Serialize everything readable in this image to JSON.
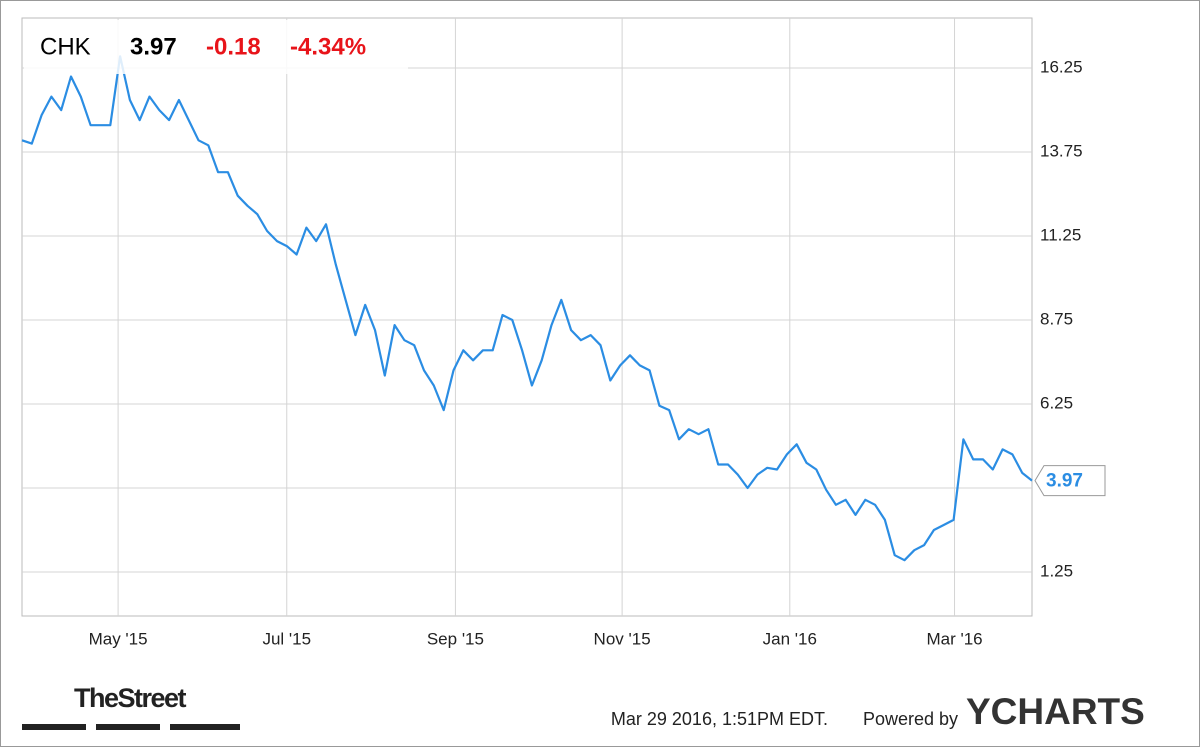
{
  "quote": {
    "symbol": "CHK",
    "price": "3.97",
    "change": "-0.18",
    "change_pct": "-4.34%"
  },
  "chart_data": {
    "type": "line",
    "series": [
      {
        "name": "CHK",
        "color": "#2b8de3",
        "values": [
          14.1,
          14.0,
          14.85,
          15.4,
          15.0,
          16.0,
          15.4,
          14.55,
          14.55,
          14.55,
          16.6,
          15.3,
          14.7,
          15.4,
          15.0,
          14.7,
          15.3,
          14.7,
          14.1,
          13.95,
          13.15,
          13.15,
          12.45,
          12.15,
          11.9,
          11.4,
          11.1,
          10.95,
          10.7,
          11.5,
          11.1,
          11.6,
          10.4,
          9.35,
          8.3,
          9.2,
          8.45,
          7.1,
          8.6,
          8.15,
          8.0,
          7.25,
          6.8,
          6.07,
          7.25,
          7.85,
          7.55,
          7.85,
          7.85,
          8.9,
          8.75,
          7.85,
          6.8,
          7.55,
          8.6,
          9.35,
          8.45,
          8.15,
          8.3,
          8.0,
          6.95,
          7.4,
          7.7,
          7.4,
          7.25,
          6.2,
          6.07,
          5.2,
          5.5,
          5.35,
          5.5,
          4.45,
          4.45,
          4.15,
          3.75,
          4.15,
          4.35,
          4.3,
          4.75,
          5.05,
          4.5,
          4.3,
          3.7,
          3.25,
          3.4,
          2.95,
          3.4,
          3.25,
          2.8,
          1.75,
          1.6,
          1.9,
          2.05,
          2.5,
          2.65,
          2.8,
          5.2,
          4.6,
          4.6,
          4.3,
          4.9,
          4.75,
          4.2,
          3.97
        ]
      }
    ],
    "xlim": [
      0,
      103
    ],
    "xticks": [
      {
        "value": 9.8,
        "label": "May '15"
      },
      {
        "value": 27,
        "label": "Jul '15"
      },
      {
        "value": 44.2,
        "label": "Sep '15"
      },
      {
        "value": 61.2,
        "label": "Nov '15"
      },
      {
        "value": 78.3,
        "label": "Jan '16"
      },
      {
        "value": 95.1,
        "label": "Mar '16"
      }
    ],
    "ylim": [
      -0.06,
      17.74
    ],
    "yticks": [
      1.25,
      3.75,
      6.25,
      8.75,
      11.25,
      13.75,
      16.25
    ],
    "grid": true
  },
  "footer": {
    "source": "TheStreet",
    "timestamp": "Mar 29 2016, 1:51PM EDT.",
    "powered": "Powered by",
    "brand": "YCHARTS"
  }
}
